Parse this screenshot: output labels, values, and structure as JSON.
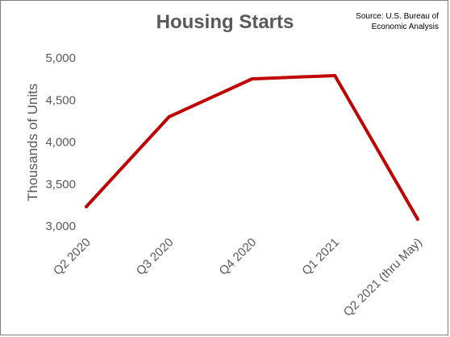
{
  "chart_data": {
    "type": "line",
    "title": "Housing Starts",
    "source_lines": [
      "Source: U.S. Bureau of",
      "Economic Analysis"
    ],
    "ylabel": "Thousands of Units",
    "xlabel": "",
    "categories": [
      "Q2 2020",
      "Q3 2020",
      "Q4 2020",
      "Q1 2021",
      "Q2 2021 (thru May)"
    ],
    "yticks": [
      "5,000",
      "4,500",
      "4,000",
      "3,500",
      "3,000"
    ],
    "ytick_values": [
      5000,
      4500,
      4000,
      3500,
      3000
    ],
    "ylim": [
      3000,
      5000
    ],
    "series": [
      {
        "values": [
          3230,
          4300,
          4750,
          4790,
          3080
        ],
        "color": "#c00000"
      }
    ],
    "grid": false,
    "legend": "none"
  }
}
